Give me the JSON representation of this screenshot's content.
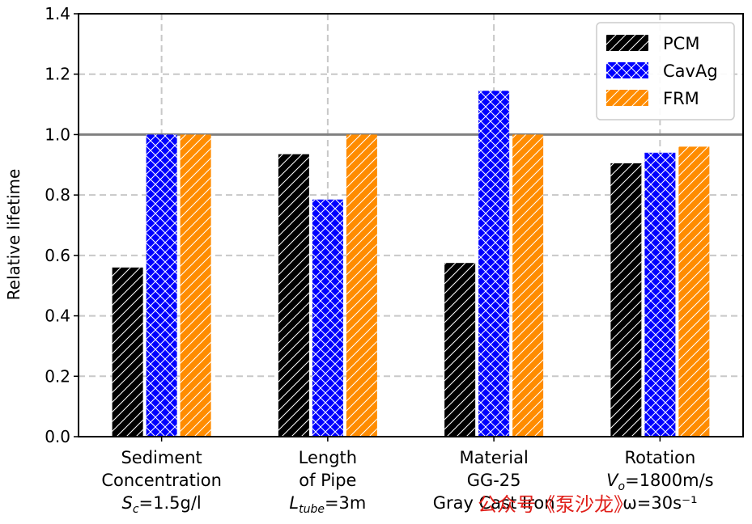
{
  "chart_data": {
    "type": "bar",
    "categories": [
      [
        "Sediment",
        "Concentration",
        "S_c=1.5g/l"
      ],
      [
        "Length",
        "of Pipe",
        "L_tube=3m"
      ],
      [
        "Material",
        "GG-25",
        "Gray Cast Iron"
      ],
      [
        "Rotation",
        "V_o=1800m/s",
        "ω=30s⁻¹"
      ]
    ],
    "series": [
      {
        "name": "PCM",
        "values": [
          0.56,
          0.935,
          0.575,
          0.905
        ],
        "color": "#000000",
        "hatch": "diagonal"
      },
      {
        "name": "CavAg",
        "values": [
          1.0,
          0.785,
          1.145,
          0.94
        ],
        "color": "#0000ff",
        "hatch": "cross"
      },
      {
        "name": "FRM",
        "values": [
          1.0,
          1.0,
          1.0,
          0.96
        ],
        "color": "#ff8c00",
        "hatch": "diagonal"
      }
    ],
    "xlabel": "",
    "ylabel": "Relative lifetime",
    "ylim": [
      0.0,
      1.4
    ],
    "yticks": [
      "0.0",
      "0.2",
      "0.4",
      "0.6",
      "0.8",
      "1.0",
      "1.2",
      "1.4"
    ],
    "reference_line": 1.0,
    "grid": true,
    "legend_position": "top-right"
  },
  "watermark": "公众号《泵沙龙》"
}
